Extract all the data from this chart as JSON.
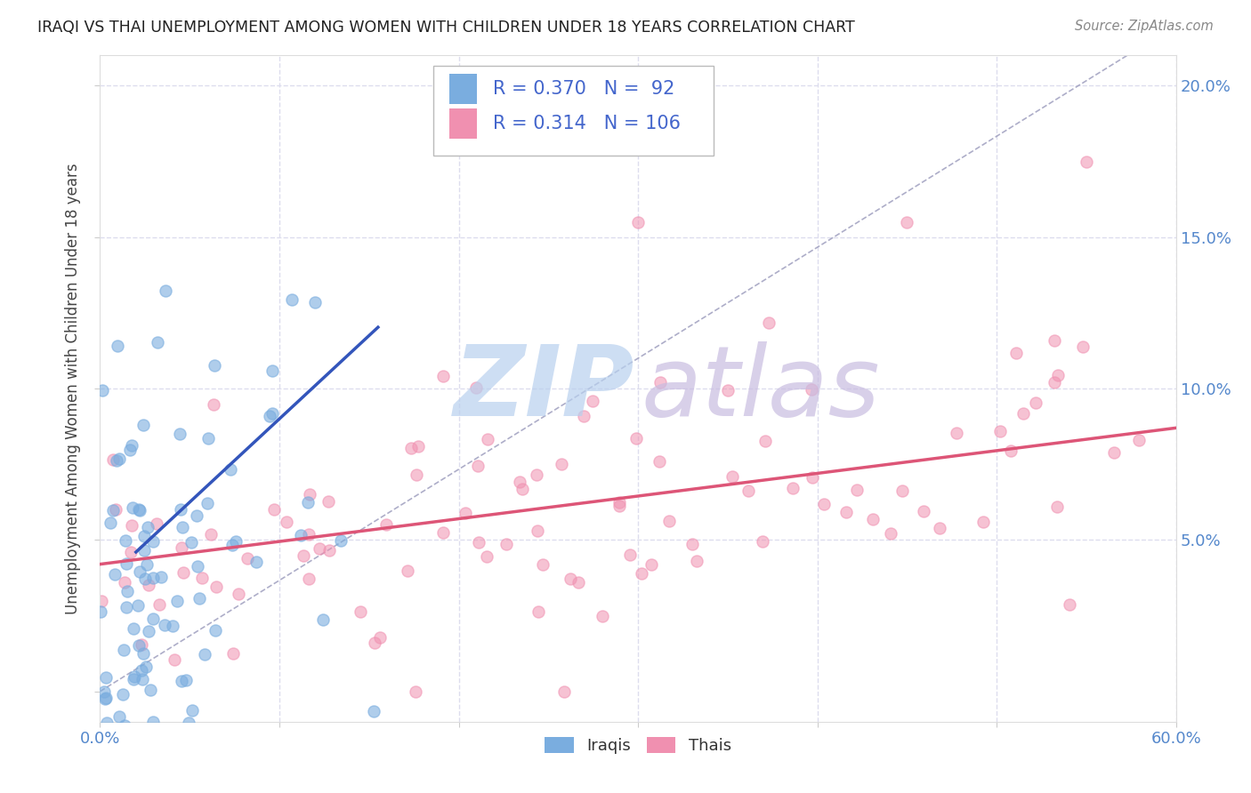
{
  "title": "IRAQI VS THAI UNEMPLOYMENT AMONG WOMEN WITH CHILDREN UNDER 18 YEARS CORRELATION CHART",
  "source": "Source: ZipAtlas.com",
  "ylabel": "Unemployment Among Women with Children Under 18 years",
  "xlim": [
    0.0,
    0.6
  ],
  "ylim": [
    -0.01,
    0.21
  ],
  "iraqi_R": "0.370",
  "iraqi_N": "92",
  "thai_R": "0.314",
  "thai_N": "106",
  "iraqi_color": "#7aaddf",
  "thai_color": "#f090b0",
  "iraqi_line_color": "#3355bb",
  "thai_line_color": "#dd5577",
  "ref_line_color": "#9999bb",
  "background_color": "#ffffff",
  "grid_color": "#ddddee",
  "title_color": "#222222",
  "source_color": "#888888",
  "tick_color": "#5588cc",
  "ylabel_color": "#444444"
}
